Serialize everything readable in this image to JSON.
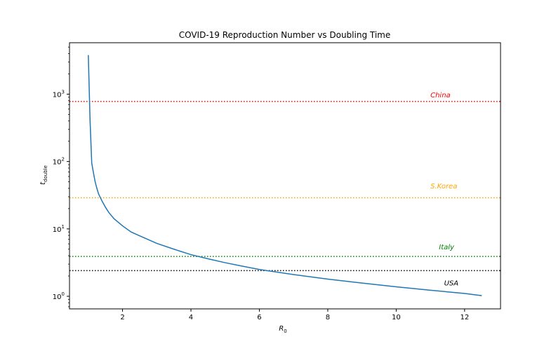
{
  "chart_data": {
    "type": "line",
    "title": "COVID-19 Reproduction Number vs Doubling Time",
    "xlabel": {
      "main": "R",
      "sub": "0"
    },
    "ylabel": {
      "main": "t",
      "sub": "double"
    },
    "xscale": "linear",
    "yscale": "log",
    "xlim": [
      0.45,
      13.05
    ],
    "ylim": [
      0.65,
      5800
    ],
    "xticks": [
      2,
      4,
      6,
      8,
      10,
      12
    ],
    "yticks": [
      {
        "value": 1,
        "base": "10",
        "exp": "0"
      },
      {
        "value": 10,
        "base": "10",
        "exp": "1"
      },
      {
        "value": 100,
        "base": "10",
        "exp": "2"
      },
      {
        "value": 1000,
        "base": "10",
        "exp": "3"
      }
    ],
    "grid": false,
    "series": [
      {
        "color": "#1f77b4",
        "x": [
          1.0,
          1.05,
          1.1,
          1.15,
          1.2,
          1.25,
          1.3,
          1.4,
          1.5,
          1.6,
          1.75,
          2.0,
          2.25,
          2.5,
          3.0,
          3.5,
          4.0,
          4.5,
          5.0,
          5.5,
          6.0,
          7.0,
          8.0,
          9.0,
          10.0,
          11.0,
          12.0,
          12.5
        ],
        "y": [
          3800,
          420,
          95,
          68,
          50,
          40,
          33,
          26,
          21,
          17.5,
          14.2,
          11.1,
          9.0,
          7.9,
          6.1,
          5.0,
          4.15,
          3.6,
          3.15,
          2.8,
          2.5,
          2.1,
          1.8,
          1.57,
          1.38,
          1.23,
          1.1,
          1.02
        ]
      }
    ],
    "hlines": [
      {
        "label": "China",
        "y": 780,
        "color": "#ff0000",
        "label_x": 11.0,
        "label_y": 900
      },
      {
        "label": "S.Korea",
        "y": 29,
        "color": "#ffa500",
        "label_x": 11.0,
        "label_y": 40
      },
      {
        "label": "Italy",
        "y": 3.9,
        "color": "#008000",
        "label_x": 11.25,
        "label_y": 5.0
      },
      {
        "label": "USA",
        "y": 2.4,
        "color": "#000000",
        "label_x": 11.4,
        "label_y": 1.45
      }
    ]
  }
}
